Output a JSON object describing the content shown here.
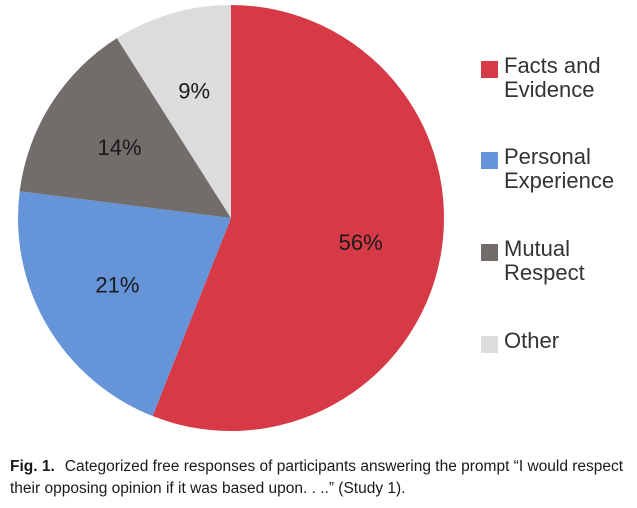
{
  "chart_data": {
    "type": "pie",
    "title": "",
    "start_angle_deg": 0,
    "direction": "clockwise",
    "slices": [
      {
        "label": "Facts and\nEvidence",
        "value": 56,
        "display": "56%",
        "color": "#d63a46"
      },
      {
        "label": "Personal\nExperience",
        "value": 21,
        "display": "21%",
        "color": "#6694d8"
      },
      {
        "label": "Mutual\nRespect",
        "value": 14,
        "display": "14%",
        "color": "#726c6b"
      },
      {
        "label": "Other",
        "value": 9,
        "display": "9%",
        "color": "#dcdcdc"
      }
    ],
    "legend_position": "right"
  },
  "caption": {
    "fig_label": "Fig. 1.",
    "text": "Categorized free responses of participants answering the prompt “I would respect their opposing opinion if it was based upon. . ..” (Study 1)."
  }
}
